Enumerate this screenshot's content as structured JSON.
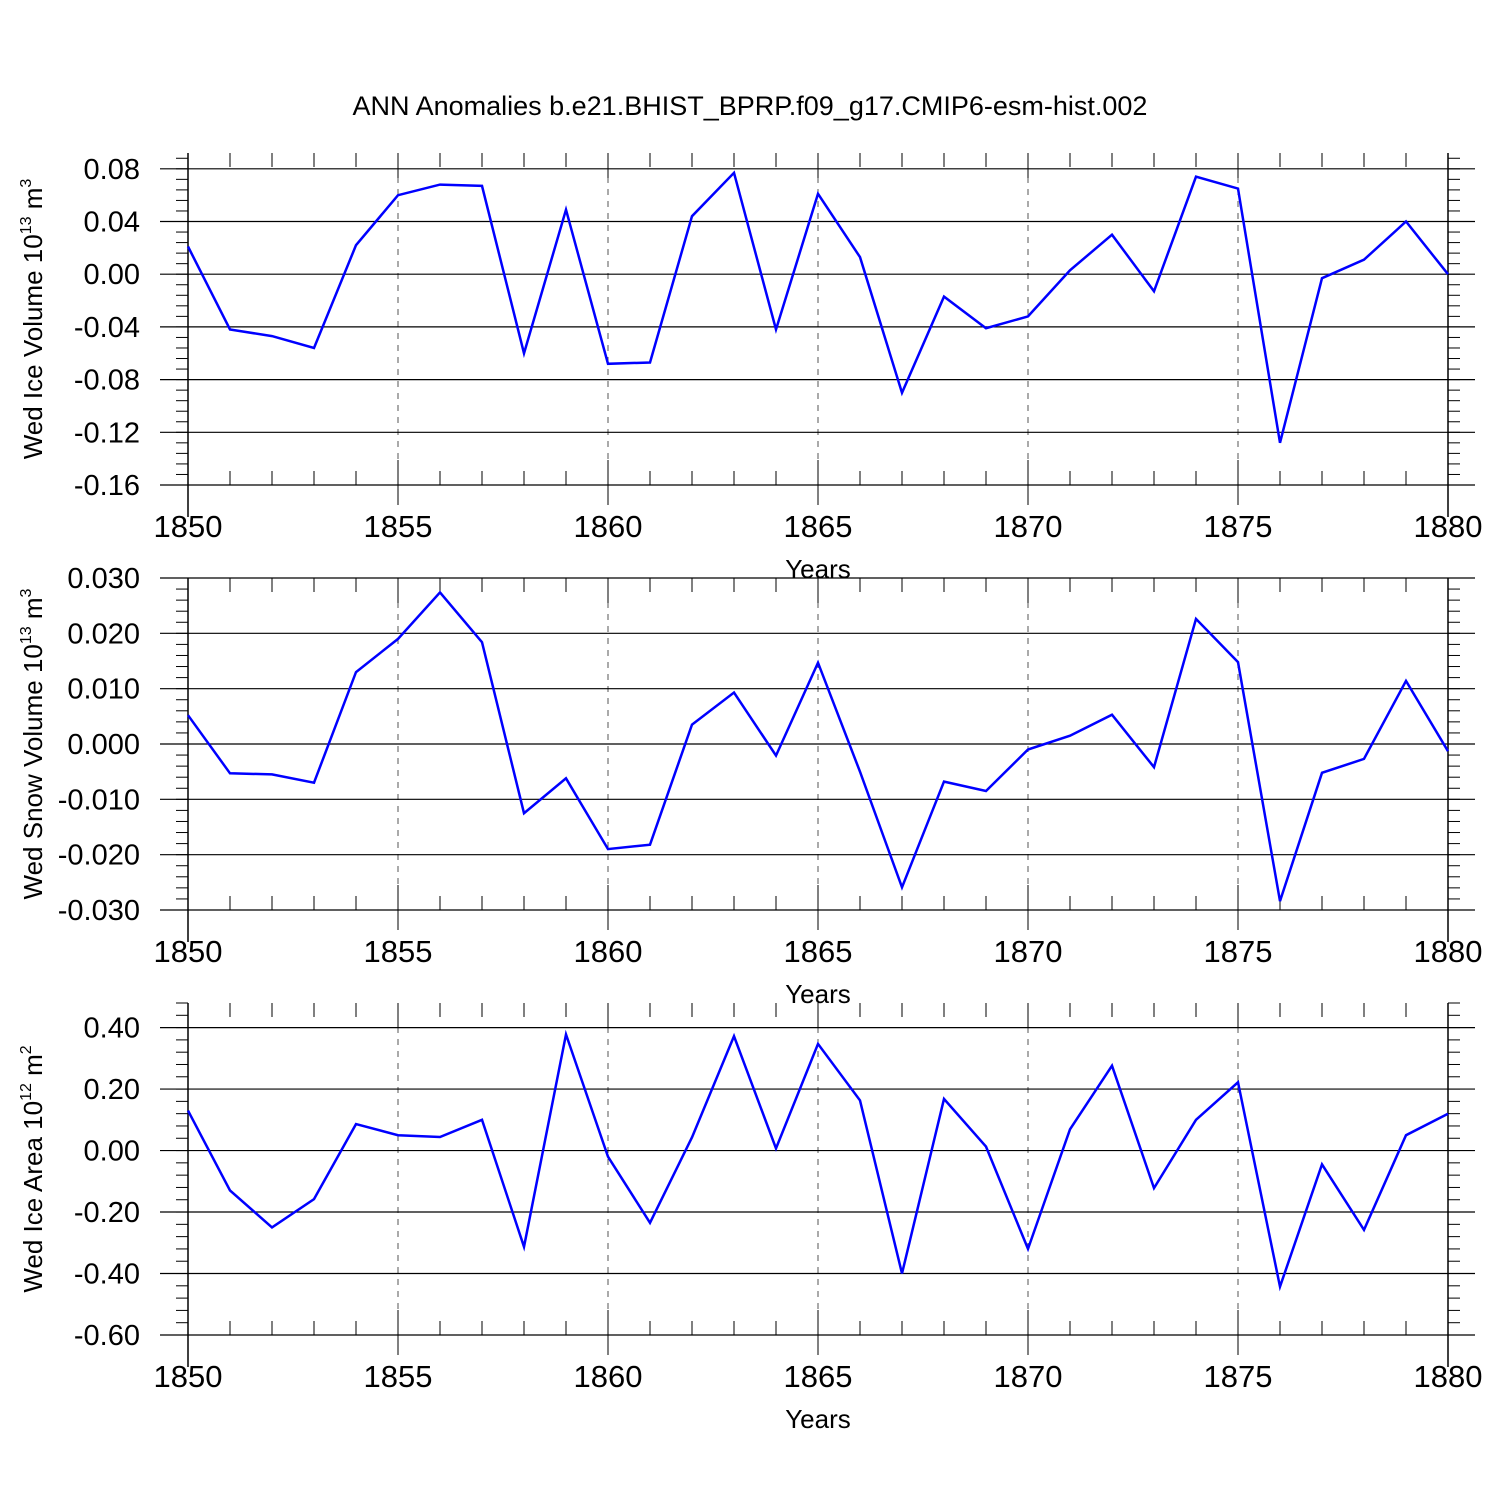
{
  "title": "ANN Anomalies b.e21.BHIST_BPRP.f09_g17.CMIP6-esm-hist.002",
  "colors": {
    "line": "#0000ff",
    "axis": "#000000",
    "grid": "#555555"
  },
  "chart_data": [
    {
      "type": "line",
      "xlabel": "Years",
      "ylabel": {
        "text": "Wed Ice Volume 10",
        "exp": "13",
        "unit": "m",
        "unit_exp": "3"
      },
      "xlim": [
        1850,
        1880
      ],
      "xticks": [
        1850,
        1855,
        1860,
        1865,
        1870,
        1875,
        1880
      ],
      "ylim": [
        -0.16,
        0.092
      ],
      "yticks": [
        0.08,
        0.04,
        0.0,
        -0.04,
        -0.08,
        -0.12,
        -0.16
      ],
      "ytick_labels": [
        "0.08",
        "0.04",
        "0.00",
        "-0.04",
        "-0.08",
        "-0.12",
        "-0.16"
      ],
      "grid": "vertical dashed at major x ticks",
      "x": [
        1850,
        1851,
        1852,
        1853,
        1854,
        1855,
        1856,
        1857,
        1858,
        1859,
        1860,
        1861,
        1862,
        1863,
        1864,
        1865,
        1866,
        1867,
        1868,
        1869,
        1870,
        1871,
        1872,
        1873,
        1874,
        1875,
        1876,
        1877,
        1878,
        1879,
        1880
      ],
      "y": [
        0.021,
        -0.042,
        -0.047,
        -0.056,
        0.022,
        0.06,
        0.068,
        0.067,
        -0.06,
        0.049,
        -0.068,
        -0.067,
        0.044,
        0.077,
        -0.042,
        0.061,
        0.013,
        -0.09,
        -0.017,
        -0.041,
        -0.032,
        0.003,
        0.03,
        -0.013,
        0.074,
        0.065,
        -0.128,
        -0.003,
        0.011,
        0.04,
        0.0
      ]
    },
    {
      "type": "line",
      "xlabel": "Years",
      "ylabel": {
        "text": "Wed Snow Volume 10",
        "exp": "13",
        "unit": "m",
        "unit_exp": "3"
      },
      "xlim": [
        1850,
        1880
      ],
      "xticks": [
        1850,
        1855,
        1860,
        1865,
        1870,
        1875,
        1880
      ],
      "ylim": [
        -0.03,
        0.03
      ],
      "yticks": [
        0.03,
        0.02,
        0.01,
        0.0,
        -0.01,
        -0.02,
        -0.03
      ],
      "ytick_labels": [
        "0.030",
        "0.020",
        "0.010",
        "0.000",
        "-0.010",
        "-0.020",
        "-0.030"
      ],
      "grid": "vertical dashed at major x ticks",
      "x": [
        1850,
        1851,
        1852,
        1853,
        1854,
        1855,
        1856,
        1857,
        1858,
        1859,
        1860,
        1861,
        1862,
        1863,
        1864,
        1865,
        1866,
        1867,
        1868,
        1869,
        1870,
        1871,
        1872,
        1873,
        1874,
        1875,
        1876,
        1877,
        1878,
        1879,
        1880
      ],
      "y": [
        0.0052,
        -0.0053,
        -0.0055,
        -0.007,
        0.013,
        0.019,
        0.0274,
        0.0184,
        -0.0125,
        -0.0062,
        -0.019,
        -0.0182,
        0.0035,
        0.0093,
        -0.0021,
        0.0147,
        -0.005,
        -0.0259,
        -0.0068,
        -0.0085,
        -0.001,
        0.0015,
        0.0053,
        -0.0042,
        0.0226,
        0.0148,
        -0.0284,
        -0.0052,
        -0.0027,
        0.0114,
        -0.0013
      ]
    },
    {
      "type": "line",
      "xlabel": "Years",
      "ylabel": {
        "text": "Wed Ice Area 10",
        "exp": "12",
        "unit": "m",
        "unit_exp": "2"
      },
      "xlim": [
        1850,
        1880
      ],
      "xticks": [
        1850,
        1855,
        1860,
        1865,
        1870,
        1875,
        1880
      ],
      "ylim": [
        -0.6,
        0.48
      ],
      "yticks": [
        0.4,
        0.2,
        0.0,
        -0.2,
        -0.4,
        -0.6
      ],
      "ytick_labels": [
        "0.40",
        "0.20",
        "0.00",
        "-0.20",
        "-0.40",
        "-0.60"
      ],
      "grid": "vertical dashed at major x ticks",
      "x": [
        1850,
        1851,
        1852,
        1853,
        1854,
        1855,
        1856,
        1857,
        1858,
        1859,
        1860,
        1861,
        1862,
        1863,
        1864,
        1865,
        1866,
        1867,
        1868,
        1869,
        1870,
        1871,
        1872,
        1873,
        1874,
        1875,
        1876,
        1877,
        1878,
        1879,
        1880
      ],
      "y": [
        0.13,
        -0.13,
        -0.25,
        -0.158,
        0.086,
        0.05,
        0.044,
        0.1,
        -0.313,
        0.378,
        -0.02,
        -0.235,
        0.043,
        0.372,
        0.007,
        0.347,
        0.163,
        -0.4,
        0.168,
        0.013,
        -0.32,
        0.069,
        0.276,
        -0.122,
        0.1,
        0.222,
        -0.443,
        -0.045,
        -0.258,
        0.05,
        0.12
      ]
    }
  ]
}
